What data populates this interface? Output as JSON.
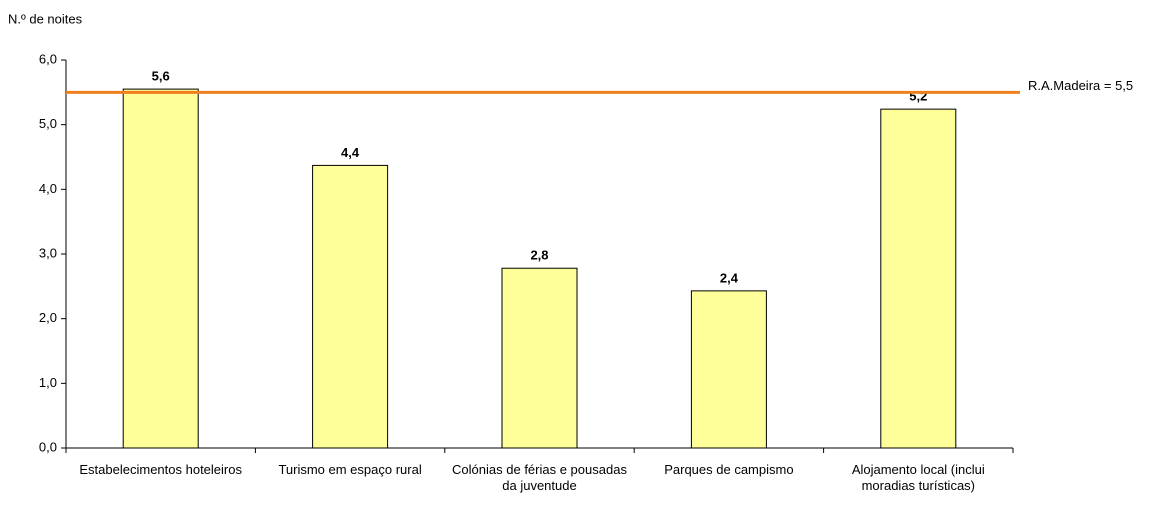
{
  "chart_data": {
    "type": "bar",
    "y_label": "N.º de noites",
    "categories": [
      "Estabelecimentos hoteleiros",
      "Turismo em espaço rural",
      "Colónias de férias e pousadas da juventude",
      "Parques de campismo",
      "Alojamento local (inclui moradias turísticas)"
    ],
    "values": [
      5.55,
      4.37,
      2.78,
      2.43,
      5.24
    ],
    "value_labels": [
      "5,6",
      "4,4",
      "2,8",
      "2,4",
      "5,2"
    ],
    "color": "#ffff99",
    "ylim": [
      0,
      6
    ],
    "yticks": [
      {
        "value": 0,
        "label": "0,0"
      },
      {
        "value": 1,
        "label": "1,0"
      },
      {
        "value": 2,
        "label": "2,0"
      },
      {
        "value": 3,
        "label": "3,0"
      },
      {
        "value": 4,
        "label": "4,0"
      },
      {
        "value": 5,
        "label": "5,0"
      },
      {
        "value": 6,
        "label": "6,0"
      }
    ],
    "reference_line": {
      "value": 5.5,
      "label": "R.A.Madeira = 5,5",
      "color": "#f07f1e"
    }
  }
}
